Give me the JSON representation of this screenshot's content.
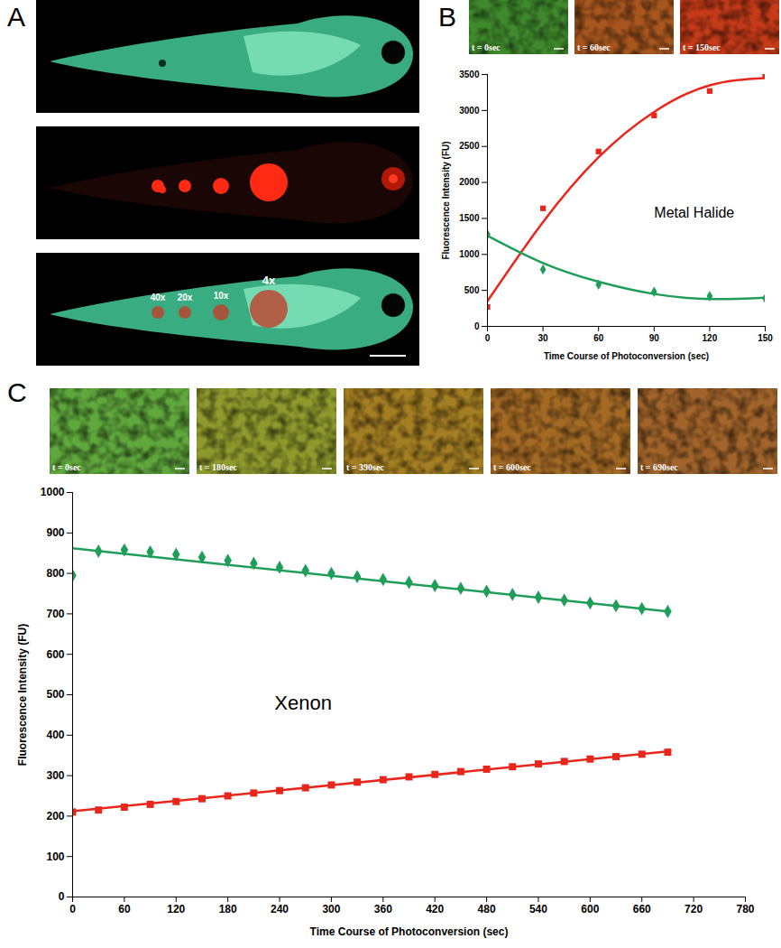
{
  "panel_labels": [
    "A",
    "B",
    "C"
  ],
  "panel_a_image_labels": [
    "40x",
    "20x",
    "10x",
    "4x"
  ],
  "panel_b_image_captions": [
    "t = 0sec",
    "t = 60sec",
    "t = 150sec"
  ],
  "panel_c_image_captions": [
    "t = 0sec",
    "t = 180sec",
    "t = 390sec",
    "t = 600sec",
    "t = 690sec"
  ],
  "chart_data": [
    {
      "type": "scatter",
      "annotation": "Metal Halide",
      "x_label": "Time Course of Photoconversion (sec)",
      "y_label": "Fluorescence Intensity (FU)",
      "xlim": [
        0,
        150
      ],
      "xticks": [
        0,
        30,
        60,
        90,
        120,
        150
      ],
      "ylim": [
        0,
        3500
      ],
      "yticks": [
        0,
        500,
        1000,
        1500,
        2000,
        2500,
        3000,
        3500
      ],
      "series": [
        {
          "type": "scatter",
          "marker": "square",
          "color": "#e8261c",
          "x": [
            0,
            30,
            60,
            90,
            120,
            150
          ],
          "values": [
            270,
            1640,
            2430,
            2930,
            3270,
            3480
          ]
        },
        {
          "type": "line",
          "color": "#e8261c",
          "x": [
            0,
            30,
            60,
            90,
            120,
            150
          ],
          "values": [
            350,
            1450,
            2350,
            2980,
            3350,
            3450
          ]
        },
        {
          "type": "scatter",
          "marker": "diamond",
          "color": "#1f9e5a",
          "x": [
            0,
            30,
            60,
            90,
            120,
            150
          ],
          "values": [
            1280,
            790,
            580,
            480,
            420,
            390
          ]
        },
        {
          "type": "line",
          "color": "#1f9e5a",
          "x": [
            0,
            30,
            60,
            90,
            120,
            150
          ],
          "values": [
            1260,
            880,
            620,
            450,
            380,
            400
          ]
        }
      ]
    },
    {
      "type": "scatter",
      "annotation": "Xenon",
      "x_label": "Time Course of Photoconversion (sec)",
      "y_label": "Fluorescence Intensity (FU)",
      "xlim": [
        0,
        780
      ],
      "xticks": [
        0,
        60,
        120,
        180,
        240,
        300,
        360,
        420,
        480,
        540,
        600,
        660,
        720,
        780
      ],
      "ylim": [
        0,
        1000
      ],
      "yticks": [
        0,
        100,
        200,
        300,
        400,
        500,
        600,
        700,
        800,
        900,
        1000
      ],
      "series": [
        {
          "type": "scatter",
          "marker": "diamond",
          "color": "#1f9e5a",
          "x": [
            0,
            30,
            60,
            90,
            120,
            150,
            180,
            210,
            240,
            270,
            300,
            330,
            360,
            390,
            420,
            450,
            480,
            510,
            540,
            570,
            600,
            630,
            660,
            690
          ],
          "values": [
            795,
            855,
            858,
            853,
            847,
            840,
            832,
            825,
            815,
            807,
            800,
            792,
            785,
            778,
            770,
            763,
            756,
            748,
            741,
            734,
            727,
            720,
            713,
            706
          ]
        },
        {
          "type": "line",
          "color": "#1f9e5a",
          "x": [
            0,
            690
          ],
          "values": [
            862,
            706
          ]
        },
        {
          "type": "scatter",
          "marker": "square",
          "color": "#e8261c",
          "x": [
            0,
            30,
            60,
            90,
            120,
            150,
            180,
            210,
            240,
            270,
            300,
            330,
            360,
            390,
            420,
            450,
            480,
            510,
            540,
            570,
            600,
            630,
            660,
            690
          ],
          "values": [
            210,
            215,
            222,
            229,
            236,
            243,
            250,
            257,
            263,
            270,
            277,
            284,
            290,
            297,
            303,
            310,
            316,
            322,
            329,
            335,
            341,
            347,
            353,
            358
          ]
        },
        {
          "type": "line",
          "color": "#e8261c",
          "x": [
            0,
            690
          ],
          "values": [
            212,
            360
          ]
        }
      ]
    }
  ]
}
